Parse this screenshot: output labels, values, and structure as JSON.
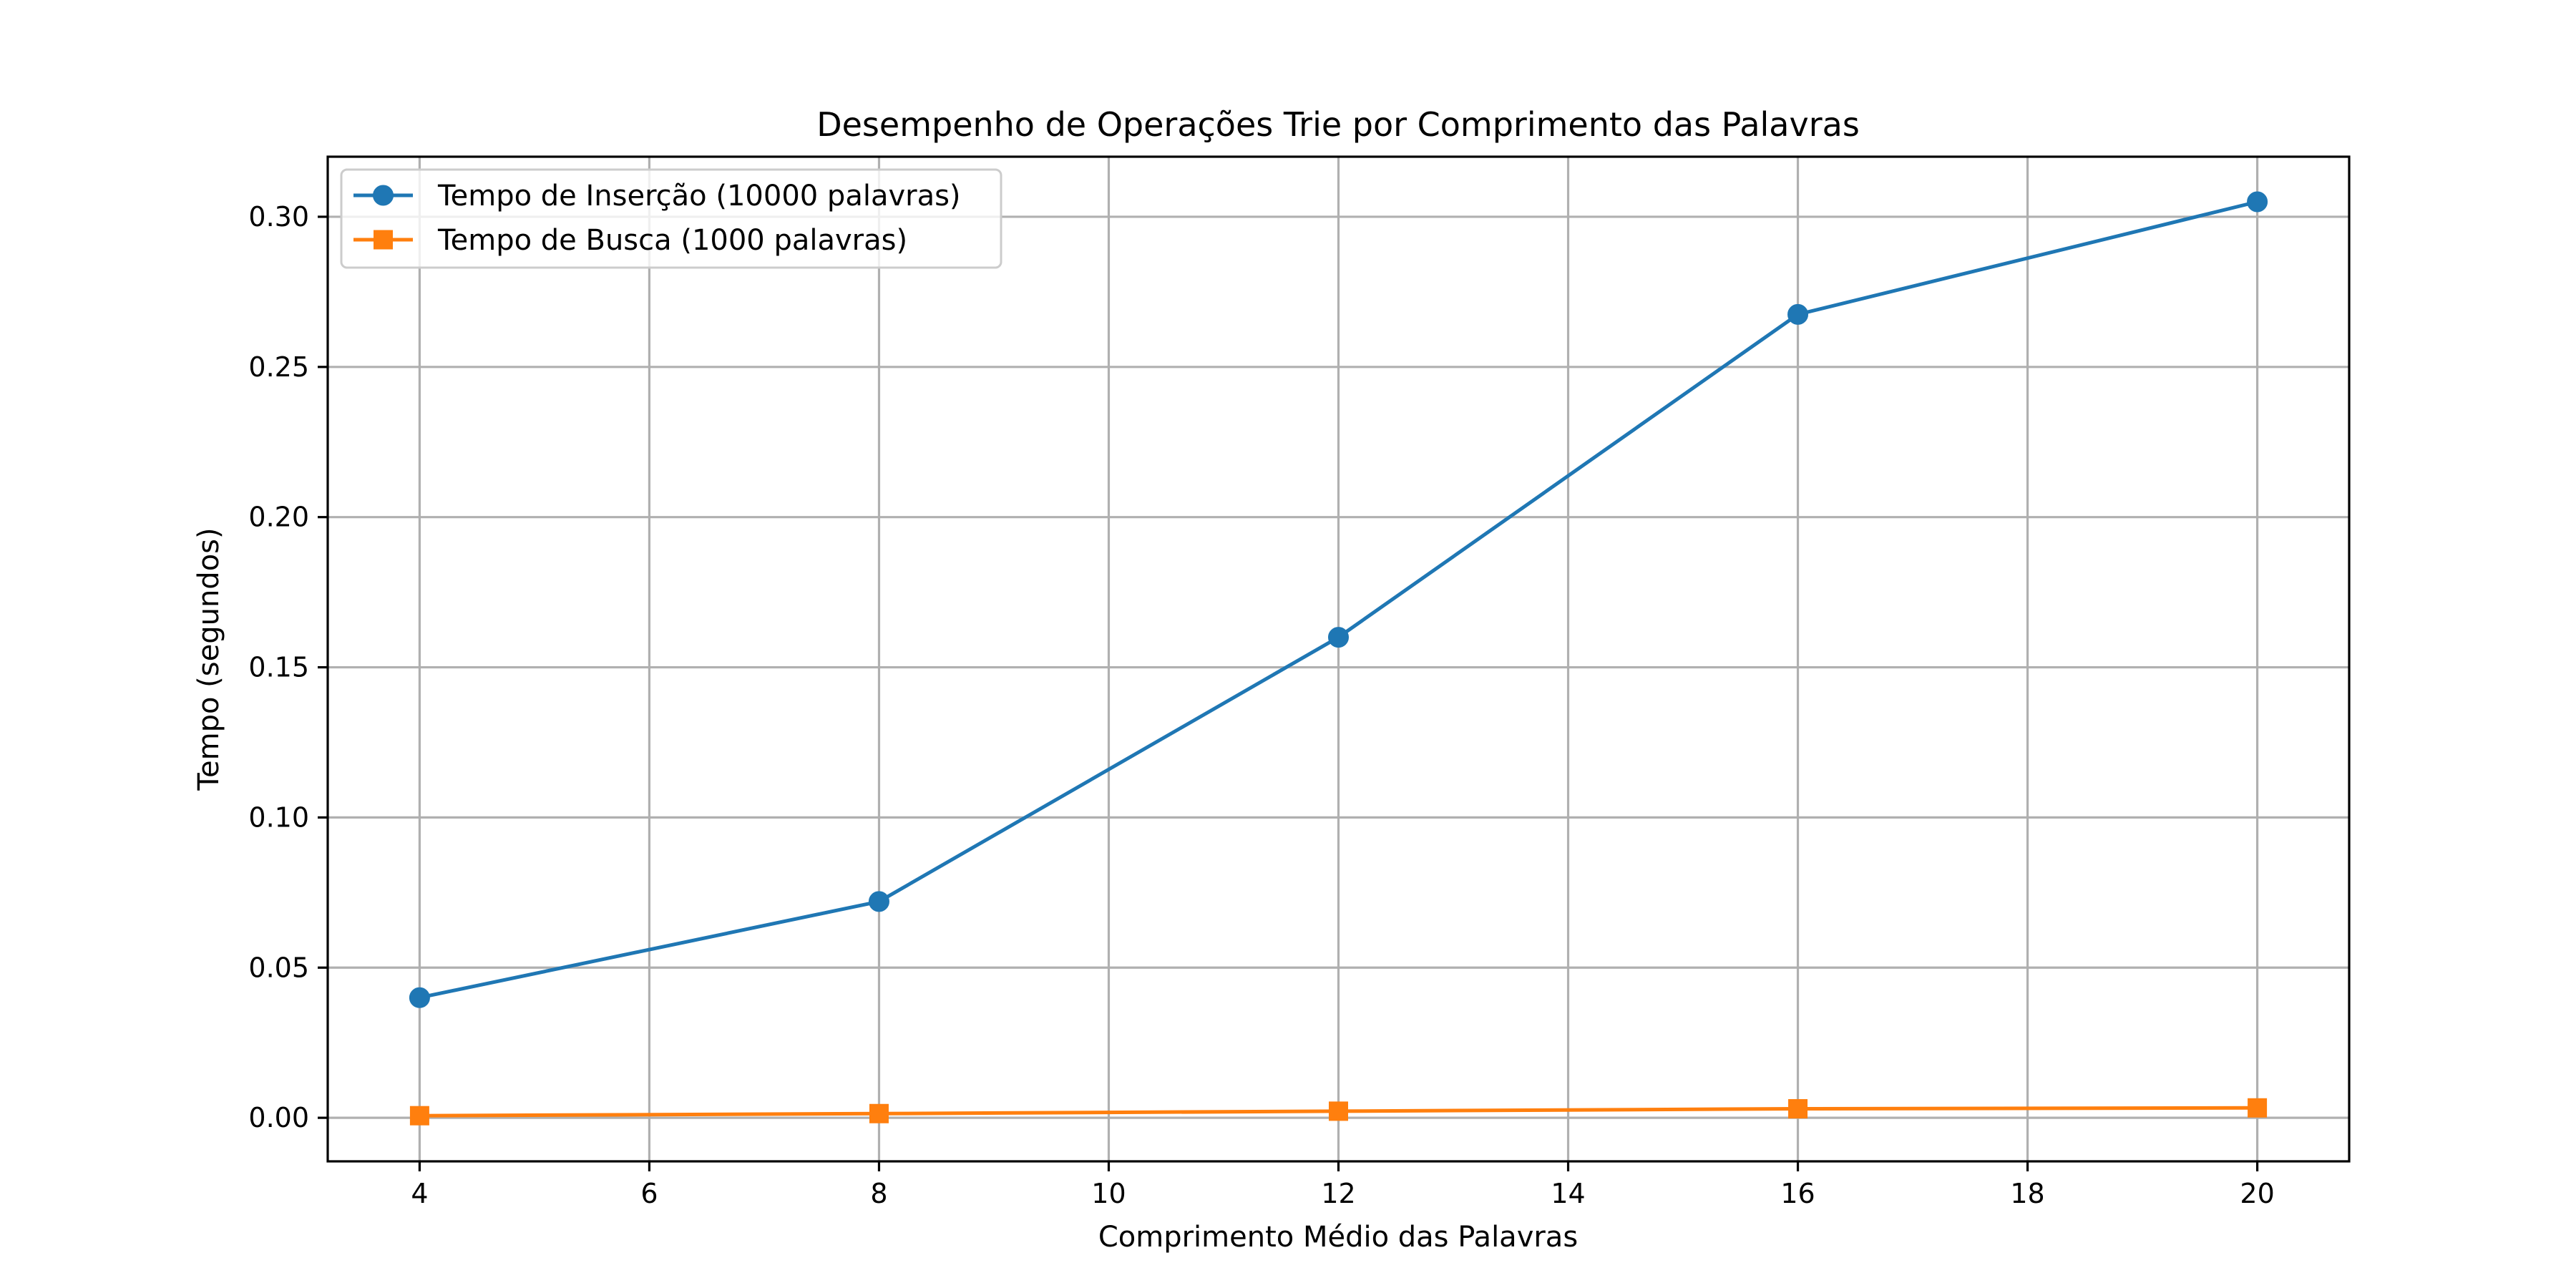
{
  "chart_data": {
    "type": "line",
    "title": "Desempenho de Operações Trie por Comprimento das Palavras",
    "xlabel": "Comprimento Médio das Palavras",
    "ylabel": "Tempo (segundos)",
    "x": [
      4,
      8,
      12,
      16,
      20
    ],
    "xlim": [
      3.2,
      20.8
    ],
    "ylim": [
      -0.0145,
      0.32
    ],
    "xticks": [
      4,
      6,
      8,
      10,
      12,
      14,
      16,
      18,
      20
    ],
    "yticks": [
      0.0,
      0.05,
      0.1,
      0.15,
      0.2,
      0.25,
      0.3
    ],
    "ytick_labels": [
      "0.00",
      "0.05",
      "0.10",
      "0.15",
      "0.20",
      "0.25",
      "0.30"
    ],
    "grid": true,
    "legend_position": "upper-left",
    "series": [
      {
        "name": "Tempo de Inserção (10000 palavras)",
        "values": [
          0.04,
          0.072,
          0.16,
          0.2675,
          0.305
        ],
        "color": "#1f77b4",
        "marker": "circle"
      },
      {
        "name": "Tempo de Busca (1000 palavras)",
        "values": [
          0.0007,
          0.0014,
          0.0022,
          0.003,
          0.0033
        ],
        "color": "#ff7f0e",
        "marker": "square"
      }
    ]
  }
}
